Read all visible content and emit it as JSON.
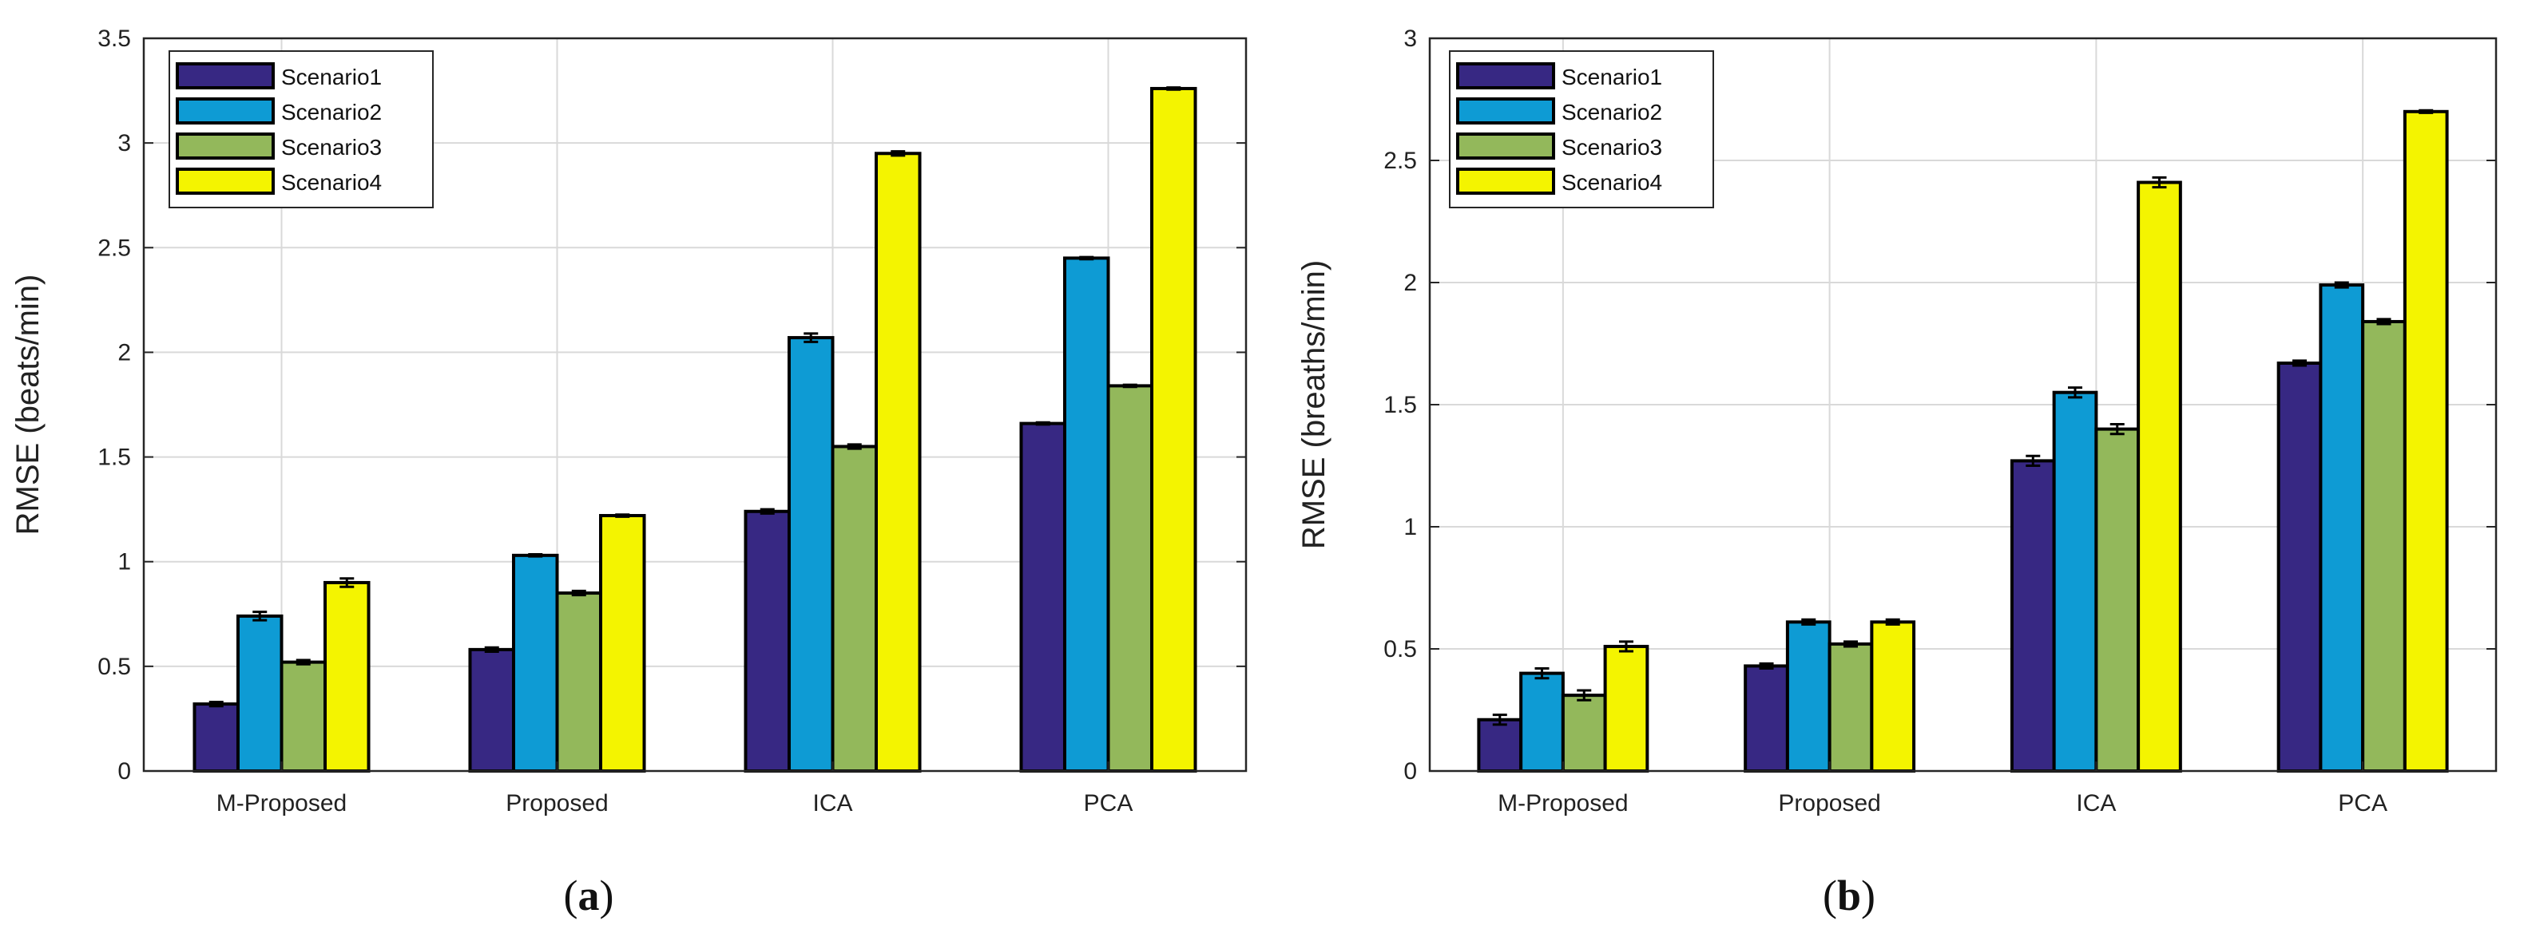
{
  "colors": {
    "Scenario1": "#372883",
    "Scenario2": "#0e9bd4",
    "Scenario3": "#93b85b",
    "Scenario4": "#f4f400",
    "grid": "#d9d9d9",
    "bar_edge": "#000000"
  },
  "chart_data": [
    {
      "type": "bar",
      "panel": "a",
      "caption": {
        "open": "(",
        "letter": "a",
        "close": ")"
      },
      "title": "",
      "xlabel": "",
      "ylabel": "RMSE (beats/min)",
      "ylim": [
        0,
        3.5
      ],
      "yticks": [
        0,
        0.5,
        1,
        1.5,
        2,
        2.5,
        3,
        3.5
      ],
      "ytick_labels": [
        "0",
        "0.5",
        "1",
        "1.5",
        "2",
        "2.5",
        "3",
        "3.5"
      ],
      "grid": true,
      "legend_position": "top-left",
      "categories": [
        "M-Proposed",
        "Proposed",
        "ICA",
        "PCA"
      ],
      "series": [
        {
          "name": "Scenario1",
          "values": [
            0.32,
            0.58,
            1.24,
            1.66
          ],
          "errors": [
            0.01,
            0.01,
            0.01,
            0.005
          ]
        },
        {
          "name": "Scenario2",
          "values": [
            0.74,
            1.03,
            2.07,
            2.45
          ],
          "errors": [
            0.02,
            0.005,
            0.02,
            0.005
          ]
        },
        {
          "name": "Scenario3",
          "values": [
            0.52,
            0.85,
            1.55,
            1.84
          ],
          "errors": [
            0.01,
            0.01,
            0.01,
            0.005
          ]
        },
        {
          "name": "Scenario4",
          "values": [
            0.9,
            1.22,
            2.95,
            3.26
          ],
          "errors": [
            0.02,
            0.005,
            0.01,
            0.005
          ]
        }
      ]
    },
    {
      "type": "bar",
      "panel": "b",
      "caption": {
        "open": "(",
        "letter": "b",
        "close": ")"
      },
      "title": "",
      "xlabel": "",
      "ylabel": "RMSE (breaths/min)",
      "ylim": [
        0,
        3
      ],
      "yticks": [
        0,
        0.5,
        1,
        1.5,
        2,
        2.5,
        3
      ],
      "ytick_labels": [
        "0",
        "0.5",
        "1",
        "1.5",
        "2",
        "2.5",
        "3"
      ],
      "grid": true,
      "legend_position": "top-left",
      "categories": [
        "M-Proposed",
        "Proposed",
        "ICA",
        "PCA"
      ],
      "series": [
        {
          "name": "Scenario1",
          "values": [
            0.21,
            0.43,
            1.27,
            1.67
          ],
          "errors": [
            0.02,
            0.01,
            0.02,
            0.01
          ]
        },
        {
          "name": "Scenario2",
          "values": [
            0.4,
            0.61,
            1.55,
            1.99
          ],
          "errors": [
            0.02,
            0.01,
            0.02,
            0.01
          ]
        },
        {
          "name": "Scenario3",
          "values": [
            0.31,
            0.52,
            1.4,
            1.84
          ],
          "errors": [
            0.02,
            0.01,
            0.02,
            0.01
          ]
        },
        {
          "name": "Scenario4",
          "values": [
            0.51,
            0.61,
            2.41,
            2.7
          ],
          "errors": [
            0.02,
            0.01,
            0.02,
            0.005
          ]
        }
      ]
    }
  ]
}
